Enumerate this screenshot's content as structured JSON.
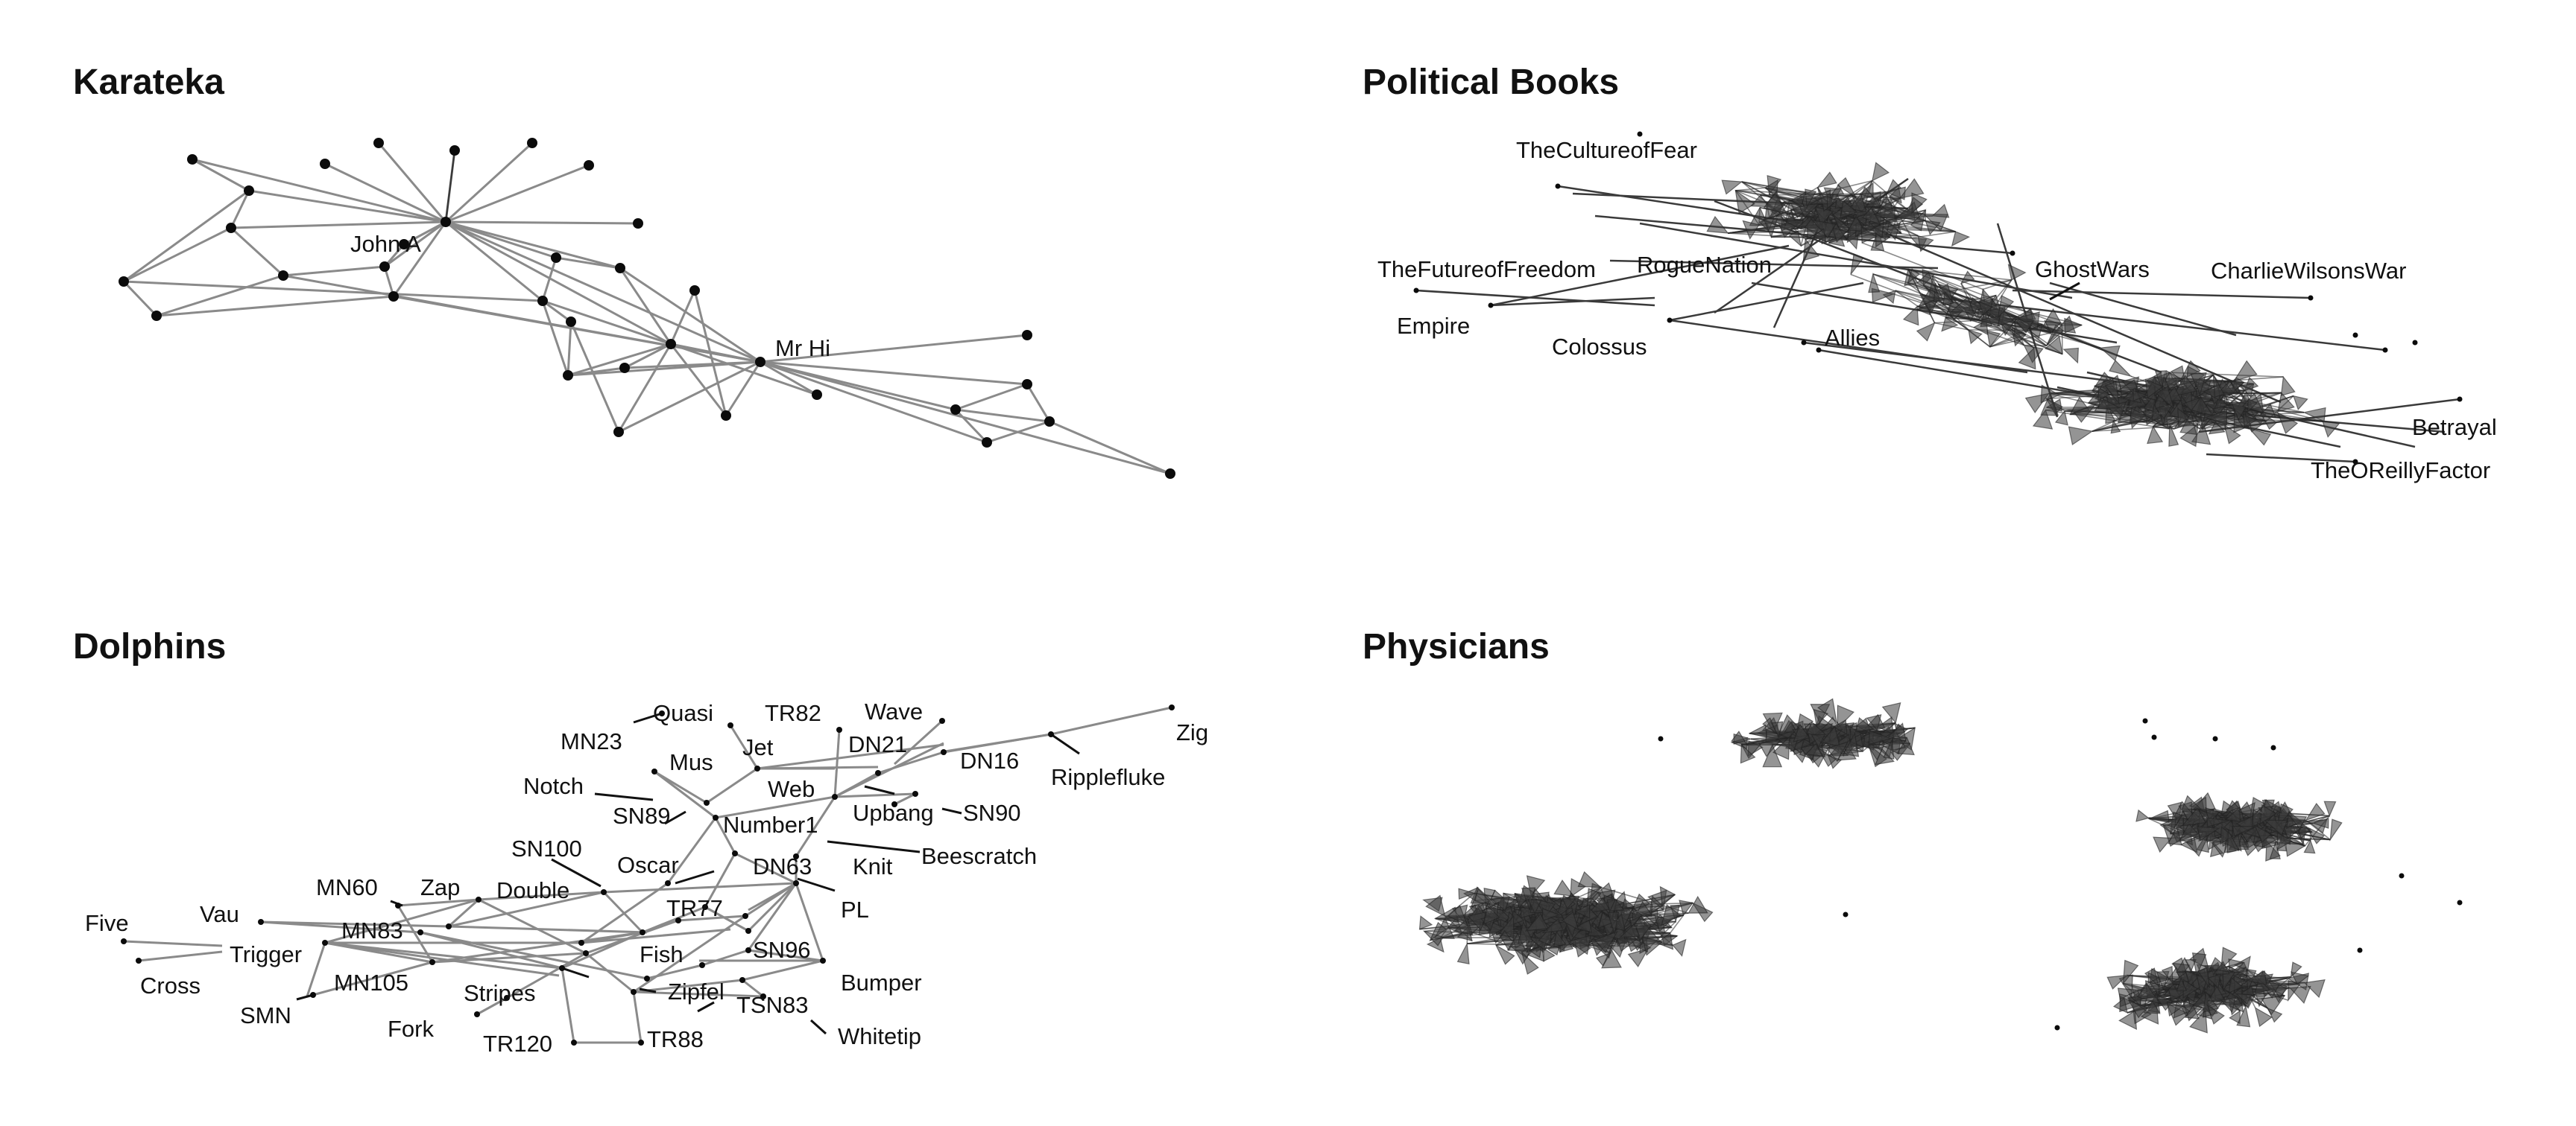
{
  "panels": {
    "karateka": {
      "title": "Karateka",
      "labels": [
        "John A",
        "Mr Hi"
      ]
    },
    "political_books": {
      "title": "Political Books",
      "labels": [
        "TheCultureofFear",
        "TheFutureofFreedom",
        "RogueNation",
        "GhostWars",
        "CharlieWilsonsWar",
        "Empire",
        "Colossus",
        "Allies",
        "Betrayal",
        "TheOReillyFactor"
      ]
    },
    "dolphins": {
      "title": "Dolphins",
      "labels": [
        "Quasi",
        "TR82",
        "Wave",
        "Zig",
        "MN23",
        "Jet",
        "DN21",
        "Mus",
        "DN16",
        "Ripplefluke",
        "Notch",
        "Web",
        "SN89",
        "Upbang",
        "SN90",
        "Number1",
        "SN100",
        "Oscar",
        "DN63",
        "Knit",
        "Beescratch",
        "MN60",
        "Zap",
        "Double",
        "PL",
        "Vau",
        "TR77",
        "Five",
        "MN83",
        "Trigger",
        "Fish",
        "SN96",
        "Cross",
        "MN105",
        "Stripes",
        "Zipfel",
        "Bumper",
        "SMN",
        "TSN83",
        "Fork",
        "TR120",
        "TR88",
        "Whitetip"
      ]
    },
    "physicians": {
      "title": "Physicians"
    }
  }
}
